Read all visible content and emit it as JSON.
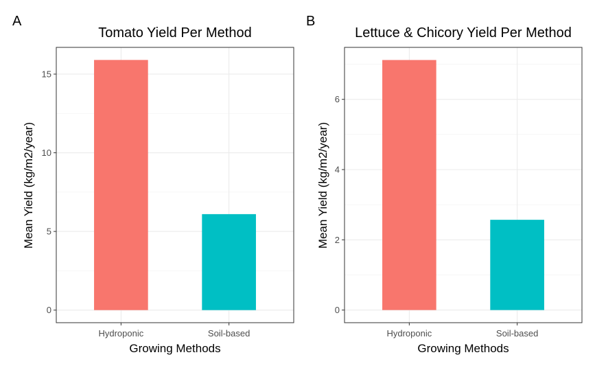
{
  "figure": {
    "panels": [
      {
        "tag": "A"
      },
      {
        "tag": "B"
      }
    ]
  },
  "chart_data": [
    {
      "type": "bar",
      "title": "Tomato Yield Per Method",
      "xlabel": "Growing Methods",
      "ylabel": "Mean Yield (kg/m2/year)",
      "categories": [
        "Hydroponic",
        "Soil-based"
      ],
      "values": [
        15.9,
        6.1
      ],
      "colors": [
        "#F8766D",
        "#00BFC4"
      ],
      "ylim": [
        -0.8,
        16.7
      ],
      "yticks": [
        0,
        5,
        10,
        15
      ],
      "ytick_labels": [
        "0",
        "5",
        "10",
        "15"
      ],
      "grid": true,
      "legend": "none"
    },
    {
      "type": "bar",
      "title": "Lettuce & Chicory Yield Per Method",
      "xlabel": "Growing Methods",
      "ylabel": "Mean Yield (kg/m2/year)",
      "categories": [
        "Hydroponic",
        "Soil-based"
      ],
      "values": [
        7.12,
        2.57
      ],
      "colors": [
        "#F8766D",
        "#00BFC4"
      ],
      "ylim": [
        -0.36,
        7.48
      ],
      "yticks": [
        0,
        2,
        4,
        6
      ],
      "ytick_labels": [
        "0",
        "2",
        "4",
        "6"
      ],
      "grid": true,
      "legend": "none"
    }
  ]
}
